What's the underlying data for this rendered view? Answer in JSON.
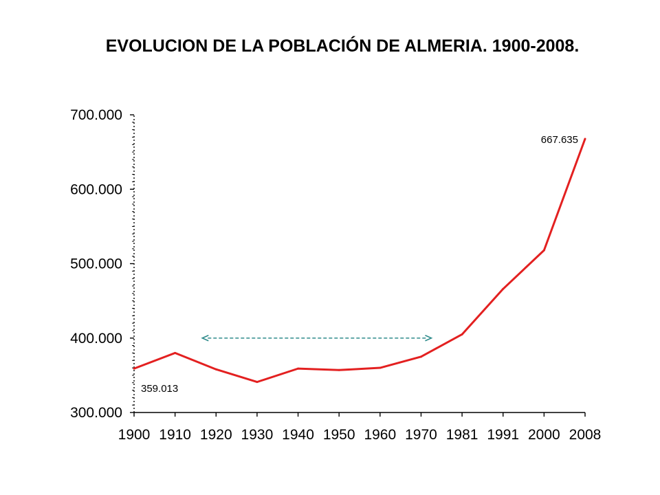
{
  "chart_data": {
    "type": "line",
    "title": "EVOLUCION DE LA POBLACIÓN DE ALMERIA. 1900-2008.",
    "categories": [
      "1900",
      "1910",
      "1920",
      "1930",
      "1940",
      "1950",
      "1960",
      "1970",
      "1981",
      "1991",
      "2000",
      "2008"
    ],
    "series": [
      {
        "values": [
          359013,
          380000,
          358000,
          341000,
          359000,
          357000,
          360000,
          375000,
          405000,
          466000,
          518000,
          667635
        ]
      }
    ],
    "ylim": [
      300000,
      700000
    ],
    "yticks": [
      {
        "value": 300000,
        "label": "300.000"
      },
      {
        "value": 400000,
        "label": "400.000"
      },
      {
        "value": 500000,
        "label": "500.000"
      },
      {
        "value": 600000,
        "label": "600.000"
      },
      {
        "value": 700000,
        "label": "700.000"
      }
    ],
    "annotations": [
      {
        "text": "359.013",
        "category": "1900"
      },
      {
        "text": "667.635",
        "category": "2008"
      }
    ],
    "arrow": {
      "from_category": "1920",
      "to_category": "1970",
      "value": 400000,
      "style": "dashed double-headed",
      "color": "#2e8b8b"
    },
    "line_color": "#e32020",
    "grid": false,
    "legend": "none"
  }
}
